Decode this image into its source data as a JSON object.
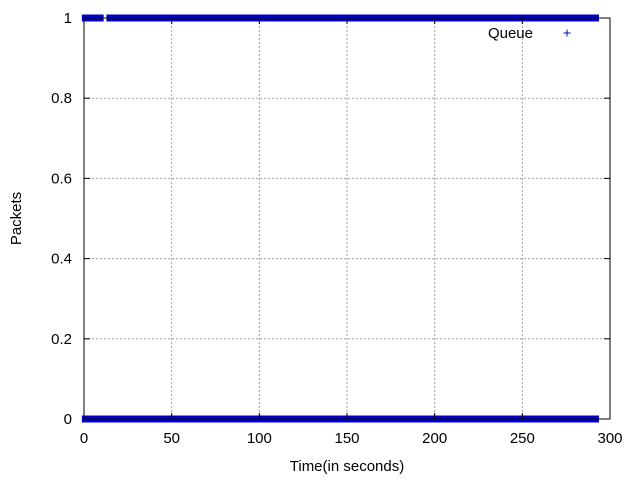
{
  "chart_data": {
    "type": "scatter",
    "xlabel": "Time(in seconds)",
    "ylabel": "Packets",
    "xlim": [
      0,
      300
    ],
    "ylim": [
      0,
      1
    ],
    "xticks": [
      0,
      50,
      100,
      150,
      200,
      250,
      300
    ],
    "yticks": [
      0,
      0.2,
      0.4,
      0.6,
      0.8,
      1
    ],
    "ytick_labels": [
      "0",
      "0.2",
      "0.4",
      "0.6",
      "0.8",
      "1"
    ],
    "grid": true,
    "legend_position": "top-right",
    "marker": "+",
    "color": "#0000cc",
    "series": [
      {
        "name": "Queue",
        "points": [
          {
            "x_start": 0.5,
            "x_end": 292,
            "y": 0
          },
          {
            "x_start": 0.5,
            "x_end": 3,
            "y": 1
          },
          {
            "x_start": 5,
            "x_end": 9.5,
            "y": 1
          },
          {
            "x_start": 14.5,
            "x_end": 24.5,
            "y": 1
          },
          {
            "x_start": 25.5,
            "x_end": 27,
            "y": 1
          },
          {
            "x_start": 28.5,
            "x_end": 53.5,
            "y": 1
          },
          {
            "x_start": 54.5,
            "x_end": 56.5,
            "y": 1
          },
          {
            "x_start": 57.5,
            "x_end": 58.5,
            "y": 1
          },
          {
            "x_start": 60,
            "x_end": 61,
            "y": 1
          },
          {
            "x_start": 62.5,
            "x_end": 292,
            "y": 1
          }
        ]
      }
    ]
  }
}
